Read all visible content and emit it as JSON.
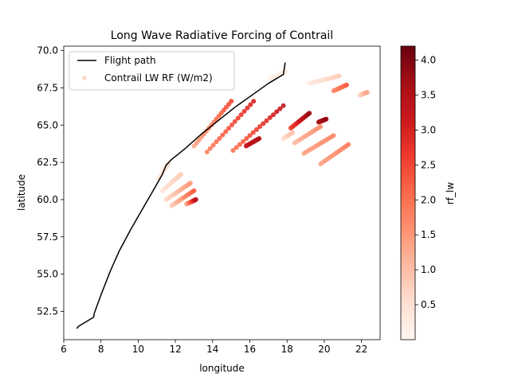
{
  "chart_data": {
    "type": "scatter",
    "title": "Long Wave Radiative Forcing of Contrail",
    "xlabel": "longitude",
    "ylabel": "latitude",
    "xlim": [
      6.0,
      23.0
    ],
    "ylim": [
      50.6,
      70.3
    ],
    "xticks": [
      6,
      8,
      10,
      12,
      14,
      16,
      18,
      20,
      22
    ],
    "yticks": [
      52.5,
      55.0,
      57.5,
      60.0,
      62.5,
      65.0,
      67.5,
      70.0
    ],
    "grid": false,
    "legend": {
      "placement": "top-left",
      "entries": [
        "Flight path",
        "Contrail LW RF (W/m2)"
      ]
    },
    "colorbar": {
      "label": "rf_lw",
      "range": [
        0.0,
        4.2
      ],
      "ticks": [
        0.5,
        1.0,
        1.5,
        2.0,
        2.5,
        3.0,
        3.5,
        4.0
      ],
      "colormap": "Reds"
    },
    "flight_path": {
      "name": "Flight path",
      "color": "#000000",
      "points": [
        [
          6.7,
          51.35
        ],
        [
          6.8,
          51.5
        ],
        [
          7.6,
          52.1
        ],
        [
          7.65,
          52.4
        ],
        [
          8.0,
          53.6
        ],
        [
          8.5,
          55.2
        ],
        [
          9.0,
          56.6
        ],
        [
          9.6,
          58.0
        ],
        [
          10.2,
          59.3
        ],
        [
          10.8,
          60.6
        ],
        [
          11.3,
          61.7
        ],
        [
          11.5,
          62.3
        ],
        [
          11.8,
          62.7
        ],
        [
          12.5,
          63.4
        ],
        [
          13.4,
          64.4
        ],
        [
          14.3,
          65.3
        ],
        [
          15.2,
          66.2
        ],
        [
          16.1,
          67.0
        ],
        [
          17.0,
          67.8
        ],
        [
          17.8,
          68.4
        ],
        [
          17.9,
          69.2
        ]
      ]
    },
    "series": [
      {
        "name": "Contrail LW RF (W/m2)",
        "segments": [
          {
            "x": [
              11.1,
              11.6
            ],
            "y": [
              61.4,
              62.4
            ],
            "rf": [
              0.3,
              0.5
            ]
          },
          {
            "x": [
              11.3,
              12.3
            ],
            "y": [
              60.6,
              61.7
            ],
            "rf": [
              0.4,
              0.8
            ]
          },
          {
            "x": [
              11.5,
              12.8
            ],
            "y": [
              60.0,
              61.1
            ],
            "rf": [
              0.6,
              1.5
            ]
          },
          {
            "x": [
              11.8,
              13.0
            ],
            "y": [
              59.6,
              60.6
            ],
            "rf": [
              0.8,
              2.2
            ]
          },
          {
            "x": [
              12.6,
              13.1
            ],
            "y": [
              59.7,
              60.0
            ],
            "rf": [
              1.2,
              3.4
            ]
          },
          {
            "x": [
              13.0,
              15.0
            ],
            "y": [
              63.6,
              66.6
            ],
            "rf": [
              1.3,
              2.5
            ]
          },
          {
            "x": [
              13.7,
              16.2
            ],
            "y": [
              63.2,
              66.6
            ],
            "rf": [
              1.8,
              3.0
            ]
          },
          {
            "x": [
              15.1,
              17.8
            ],
            "y": [
              63.3,
              66.3
            ],
            "rf": [
              2.0,
              3.3
            ]
          },
          {
            "x": [
              15.8,
              16.5
            ],
            "y": [
              63.6,
              64.1
            ],
            "rf": [
              3.2,
              3.5
            ]
          },
          {
            "x": [
              17.1,
              17.9
            ],
            "y": [
              68.1,
              68.6
            ],
            "rf": [
              0.1,
              0.3
            ]
          },
          {
            "x": [
              17.8,
              18.3
            ],
            "y": [
              64.1,
              64.5
            ],
            "rf": [
              0.5,
              0.9
            ]
          },
          {
            "x": [
              18.2,
              19.2
            ],
            "y": [
              64.8,
              65.8
            ],
            "rf": [
              2.5,
              3.8
            ]
          },
          {
            "x": [
              18.4,
              19.8
            ],
            "y": [
              63.8,
              64.9
            ],
            "rf": [
              1.0,
              1.6
            ]
          },
          {
            "x": [
              18.9,
              20.5
            ],
            "y": [
              63.1,
              64.3
            ],
            "rf": [
              1.3,
              1.7
            ]
          },
          {
            "x": [
              19.2,
              20.8
            ],
            "y": [
              67.8,
              68.3
            ],
            "rf": [
              0.3,
              0.8
            ]
          },
          {
            "x": [
              19.7,
              20.1
            ],
            "y": [
              65.2,
              65.4
            ],
            "rf": [
              3.6,
              3.8
            ]
          },
          {
            "x": [
              19.8,
              21.3
            ],
            "y": [
              62.4,
              63.7
            ],
            "rf": [
              1.3,
              1.8
            ]
          },
          {
            "x": [
              20.5,
              21.2
            ],
            "y": [
              67.3,
              67.7
            ],
            "rf": [
              1.6,
              2.2
            ]
          },
          {
            "x": [
              21.9,
              22.3
            ],
            "y": [
              67.0,
              67.2
            ],
            "rf": [
              0.6,
              1.3
            ]
          }
        ]
      }
    ]
  }
}
